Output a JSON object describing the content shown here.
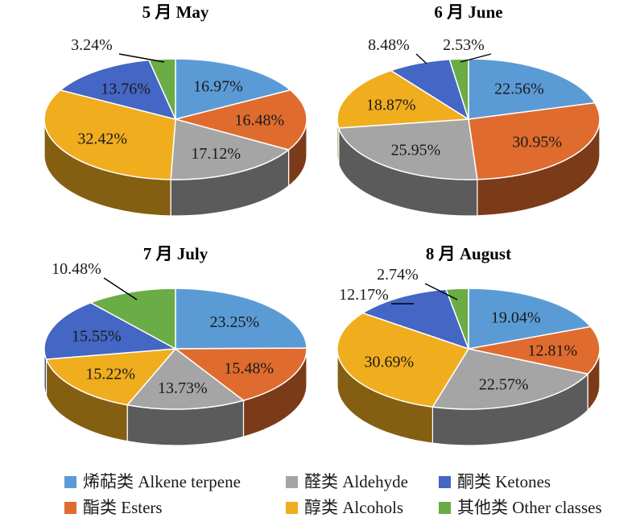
{
  "colors": {
    "alkene": "#5b9bd5",
    "esters": "#e06b2e",
    "aldehyde": "#a5a5a5",
    "alcohols": "#f0ad1e",
    "ketones": "#4466c4",
    "other": "#6aac46"
  },
  "legend": [
    {
      "key": "alkene",
      "label": "烯萜类 Alkene terpene"
    },
    {
      "key": "aldehyde",
      "label": "醛类 Aldehyde"
    },
    {
      "key": "ketones",
      "label": "酮类 Ketones"
    },
    {
      "key": "esters",
      "label": "酯类 Esters"
    },
    {
      "key": "alcohols",
      "label": "醇类 Alcohols"
    },
    {
      "key": "other",
      "label": "其他类 Other classes"
    }
  ],
  "chart_data": [
    {
      "type": "pie",
      "title": "5 月 May",
      "slices": [
        {
          "key": "alkene",
          "value": 16.97,
          "label": "16.97%"
        },
        {
          "key": "esters",
          "value": 16.48,
          "label": "16.48%"
        },
        {
          "key": "aldehyde",
          "value": 17.12,
          "label": "17.12%"
        },
        {
          "key": "alcohols",
          "value": 32.42,
          "label": "32.42%"
        },
        {
          "key": "ketones",
          "value": 13.76,
          "label": "13.76%"
        },
        {
          "key": "other",
          "value": 3.24,
          "label": "3.24%"
        }
      ]
    },
    {
      "type": "pie",
      "title": "6 月 June",
      "slices": [
        {
          "key": "alkene",
          "value": 22.56,
          "label": "22.56%"
        },
        {
          "key": "esters",
          "value": 30.95,
          "label": "30.95%"
        },
        {
          "key": "aldehyde",
          "value": 25.95,
          "label": "25.95%"
        },
        {
          "key": "alcohols",
          "value": 18.87,
          "label": "18.87%"
        },
        {
          "key": "ketones",
          "value": 8.48,
          "label": "8.48%"
        },
        {
          "key": "other",
          "value": 2.53,
          "label": "2.53%"
        }
      ]
    },
    {
      "type": "pie",
      "title": "7 月 July",
      "slices": [
        {
          "key": "alkene",
          "value": 23.25,
          "label": "23.25%"
        },
        {
          "key": "esters",
          "value": 15.48,
          "label": "15.48%"
        },
        {
          "key": "aldehyde",
          "value": 13.73,
          "label": "13.73%"
        },
        {
          "key": "alcohols",
          "value": 15.22,
          "label": "15.22%"
        },
        {
          "key": "ketones",
          "value": 15.55,
          "label": "15.55%"
        },
        {
          "key": "other",
          "value": 10.48,
          "label": "10.48%"
        }
      ]
    },
    {
      "type": "pie",
      "title": "8 月 August",
      "slices": [
        {
          "key": "alkene",
          "value": 19.04,
          "label": "19.04%"
        },
        {
          "key": "esters",
          "value": 12.81,
          "label": "12.81%"
        },
        {
          "key": "aldehyde",
          "value": 22.57,
          "label": "22.57%"
        },
        {
          "key": "alcohols",
          "value": 30.69,
          "label": "30.69%"
        },
        {
          "key": "ketones",
          "value": 12.17,
          "label": "12.17%"
        },
        {
          "key": "other",
          "value": 2.74,
          "label": "2.74%"
        }
      ]
    }
  ]
}
